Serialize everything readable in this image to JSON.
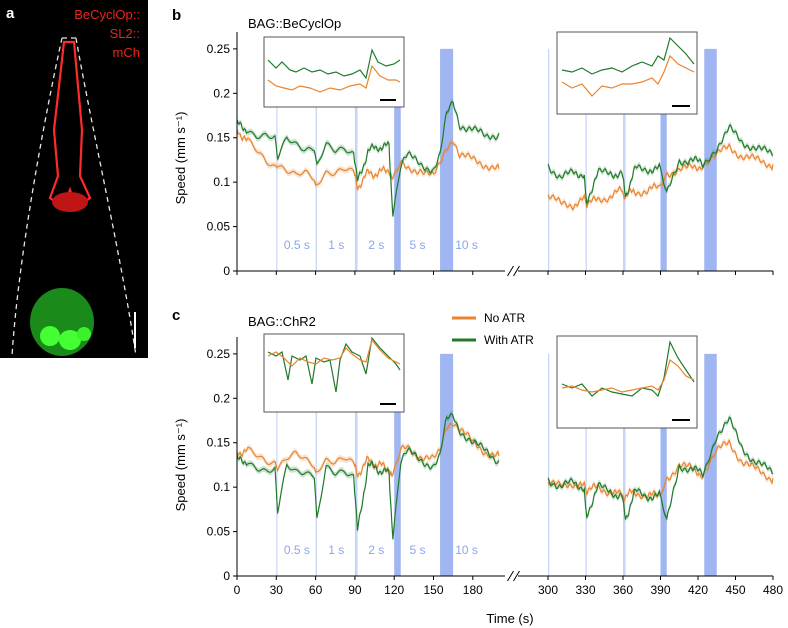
{
  "figure": {
    "panel_letters": [
      "a",
      "b",
      "c"
    ],
    "micrograph": {
      "label_lines": [
        "BeCyclOp::",
        "SL2::",
        "mCh"
      ],
      "label_color": "#e8261c"
    }
  },
  "colors": {
    "no_atr": "#e8852e",
    "with_atr": "#1f7a2a",
    "stim": "#9fb6f2",
    "stim_edge": "#c8d4f6"
  },
  "chart_data": [
    {
      "type": "line",
      "panel": "b",
      "title": "BAG::BeCyclOp",
      "xlabel": "",
      "ylabel": "Speed (mm s⁻¹)",
      "ylim": [
        0,
        0.27
      ],
      "yticks": [
        "0",
        "0.05",
        "0.1",
        "0.15",
        "0.2",
        "0.25"
      ],
      "xlim": [
        0,
        480
      ],
      "x_axis_break": [
        200,
        300
      ],
      "stimuli": [
        {
          "start": 30,
          "dur": 0.5,
          "label": "0.5 s"
        },
        {
          "start": 60,
          "dur": 1,
          "label": "1 s"
        },
        {
          "start": 90,
          "dur": 2,
          "label": "2 s"
        },
        {
          "start": 120,
          "dur": 5,
          "label": "5 s"
        },
        {
          "start": 155,
          "dur": 10,
          "label": "10 s"
        },
        {
          "start": 300,
          "dur": 0.5,
          "label": ""
        },
        {
          "start": 330,
          "dur": 1,
          "label": ""
        },
        {
          "start": 360,
          "dur": 2,
          "label": ""
        },
        {
          "start": 390,
          "dur": 5,
          "label": ""
        },
        {
          "start": 425,
          "dur": 10,
          "label": ""
        }
      ],
      "series": [
        {
          "name": "No ATR",
          "color": "#e8852e",
          "x": [
            0,
            8,
            15,
            22,
            29,
            31,
            38,
            45,
            52,
            59,
            61,
            68,
            75,
            82,
            89,
            92,
            100,
            108,
            116,
            119,
            125,
            130,
            140,
            150,
            155,
            160,
            165,
            170,
            180,
            190,
            200,
            300,
            310,
            320,
            329,
            331,
            340,
            350,
            359,
            362,
            370,
            380,
            389,
            395,
            405,
            415,
            424,
            435,
            445,
            455,
            465,
            480
          ],
          "y": [
            0.16,
            0.145,
            0.135,
            0.125,
            0.12,
            0.118,
            0.11,
            0.105,
            0.11,
            0.105,
            0.1,
            0.11,
            0.107,
            0.112,
            0.11,
            0.095,
            0.11,
            0.11,
            0.115,
            0.1,
            0.12,
            0.115,
            0.115,
            0.105,
            0.12,
            0.14,
            0.15,
            0.13,
            0.125,
            0.12,
            0.115,
            0.085,
            0.075,
            0.075,
            0.08,
            0.075,
            0.08,
            0.085,
            0.09,
            0.085,
            0.09,
            0.09,
            0.095,
            0.11,
            0.115,
            0.115,
            0.12,
            0.13,
            0.14,
            0.13,
            0.125,
            0.12
          ]
        },
        {
          "name": "With ATR",
          "color": "#1f7a2a",
          "x": [
            0,
            8,
            15,
            22,
            29,
            31,
            38,
            45,
            52,
            59,
            61,
            68,
            75,
            82,
            89,
            92,
            100,
            108,
            116,
            119,
            125,
            130,
            140,
            150,
            155,
            160,
            165,
            170,
            180,
            190,
            200,
            300,
            310,
            320,
            329,
            331,
            340,
            350,
            359,
            362,
            370,
            380,
            389,
            395,
            405,
            415,
            424,
            435,
            445,
            455,
            465,
            480
          ],
          "y": [
            0.165,
            0.16,
            0.155,
            0.155,
            0.15,
            0.125,
            0.15,
            0.145,
            0.14,
            0.14,
            0.115,
            0.14,
            0.135,
            0.14,
            0.135,
            0.1,
            0.135,
            0.14,
            0.14,
            0.065,
            0.12,
            0.13,
            0.12,
            0.115,
            0.13,
            0.175,
            0.19,
            0.165,
            0.16,
            0.15,
            0.155,
            0.12,
            0.105,
            0.11,
            0.11,
            0.08,
            0.11,
            0.11,
            0.11,
            0.085,
            0.115,
            0.115,
            0.115,
            0.085,
            0.125,
            0.125,
            0.12,
            0.14,
            0.16,
            0.145,
            0.14,
            0.13
          ]
        }
      ]
    },
    {
      "type": "line",
      "panel": "c",
      "title": "BAG::ChR2",
      "xlabel": "Time (s)",
      "ylabel": "Speed (mm s⁻¹)",
      "ylim": [
        0,
        0.27
      ],
      "yticks": [
        "0",
        "0.05",
        "0.1",
        "0.15",
        "0.2",
        "0.25"
      ],
      "xlim": [
        0,
        480
      ],
      "xticks": [
        "0",
        "30",
        "60",
        "90",
        "120",
        "150",
        "180",
        "300",
        "330",
        "360",
        "390",
        "420",
        "450",
        "480"
      ],
      "x_axis_break": [
        200,
        300
      ],
      "legend": {
        "entries": [
          "No ATR",
          "With ATR"
        ],
        "placement": "top-center"
      },
      "stimuli": [
        {
          "start": 30,
          "dur": 0.5,
          "label": "0.5 s"
        },
        {
          "start": 60,
          "dur": 1,
          "label": "1 s"
        },
        {
          "start": 90,
          "dur": 2,
          "label": "2 s"
        },
        {
          "start": 120,
          "dur": 5,
          "label": "5 s"
        },
        {
          "start": 155,
          "dur": 10,
          "label": "10 s"
        },
        {
          "start": 300,
          "dur": 0.5,
          "label": ""
        },
        {
          "start": 330,
          "dur": 1,
          "label": ""
        },
        {
          "start": 360,
          "dur": 2,
          "label": ""
        },
        {
          "start": 390,
          "dur": 5,
          "label": ""
        },
        {
          "start": 425,
          "dur": 10,
          "label": ""
        }
      ],
      "series": [
        {
          "name": "No ATR",
          "color": "#e8852e",
          "x": [
            0,
            8,
            15,
            22,
            29,
            31,
            38,
            45,
            52,
            59,
            61,
            68,
            75,
            82,
            89,
            92,
            100,
            108,
            116,
            119,
            125,
            130,
            140,
            150,
            155,
            160,
            165,
            170,
            180,
            190,
            200,
            300,
            310,
            320,
            329,
            331,
            340,
            350,
            359,
            362,
            370,
            380,
            389,
            395,
            405,
            415,
            424,
            435,
            445,
            455,
            465,
            480
          ],
          "y": [
            0.14,
            0.14,
            0.135,
            0.13,
            0.13,
            0.12,
            0.13,
            0.135,
            0.13,
            0.125,
            0.12,
            0.13,
            0.125,
            0.13,
            0.125,
            0.115,
            0.13,
            0.125,
            0.12,
            0.11,
            0.14,
            0.145,
            0.135,
            0.13,
            0.14,
            0.17,
            0.175,
            0.165,
            0.15,
            0.14,
            0.135,
            0.105,
            0.1,
            0.105,
            0.1,
            0.095,
            0.1,
            0.095,
            0.09,
            0.09,
            0.095,
            0.09,
            0.09,
            0.11,
            0.125,
            0.12,
            0.115,
            0.14,
            0.15,
            0.13,
            0.12,
            0.11
          ]
        },
        {
          "name": "With ATR",
          "color": "#1f7a2a",
          "x": [
            0,
            8,
            15,
            22,
            29,
            31,
            38,
            45,
            52,
            59,
            61,
            68,
            75,
            82,
            89,
            92,
            100,
            108,
            116,
            119,
            125,
            130,
            140,
            150,
            155,
            160,
            165,
            170,
            180,
            190,
            200,
            300,
            310,
            320,
            329,
            331,
            340,
            350,
            359,
            362,
            370,
            380,
            389,
            395,
            405,
            415,
            424,
            435,
            445,
            455,
            465,
            480
          ],
          "y": [
            0.13,
            0.13,
            0.125,
            0.12,
            0.12,
            0.07,
            0.125,
            0.12,
            0.12,
            0.115,
            0.06,
            0.12,
            0.115,
            0.12,
            0.115,
            0.05,
            0.125,
            0.12,
            0.115,
            0.045,
            0.13,
            0.14,
            0.13,
            0.125,
            0.135,
            0.175,
            0.18,
            0.165,
            0.15,
            0.14,
            0.13,
            0.11,
            0.1,
            0.105,
            0.1,
            0.07,
            0.1,
            0.095,
            0.09,
            0.065,
            0.095,
            0.09,
            0.09,
            0.06,
            0.125,
            0.12,
            0.115,
            0.16,
            0.175,
            0.145,
            0.13,
            0.115
          ]
        }
      ]
    }
  ]
}
